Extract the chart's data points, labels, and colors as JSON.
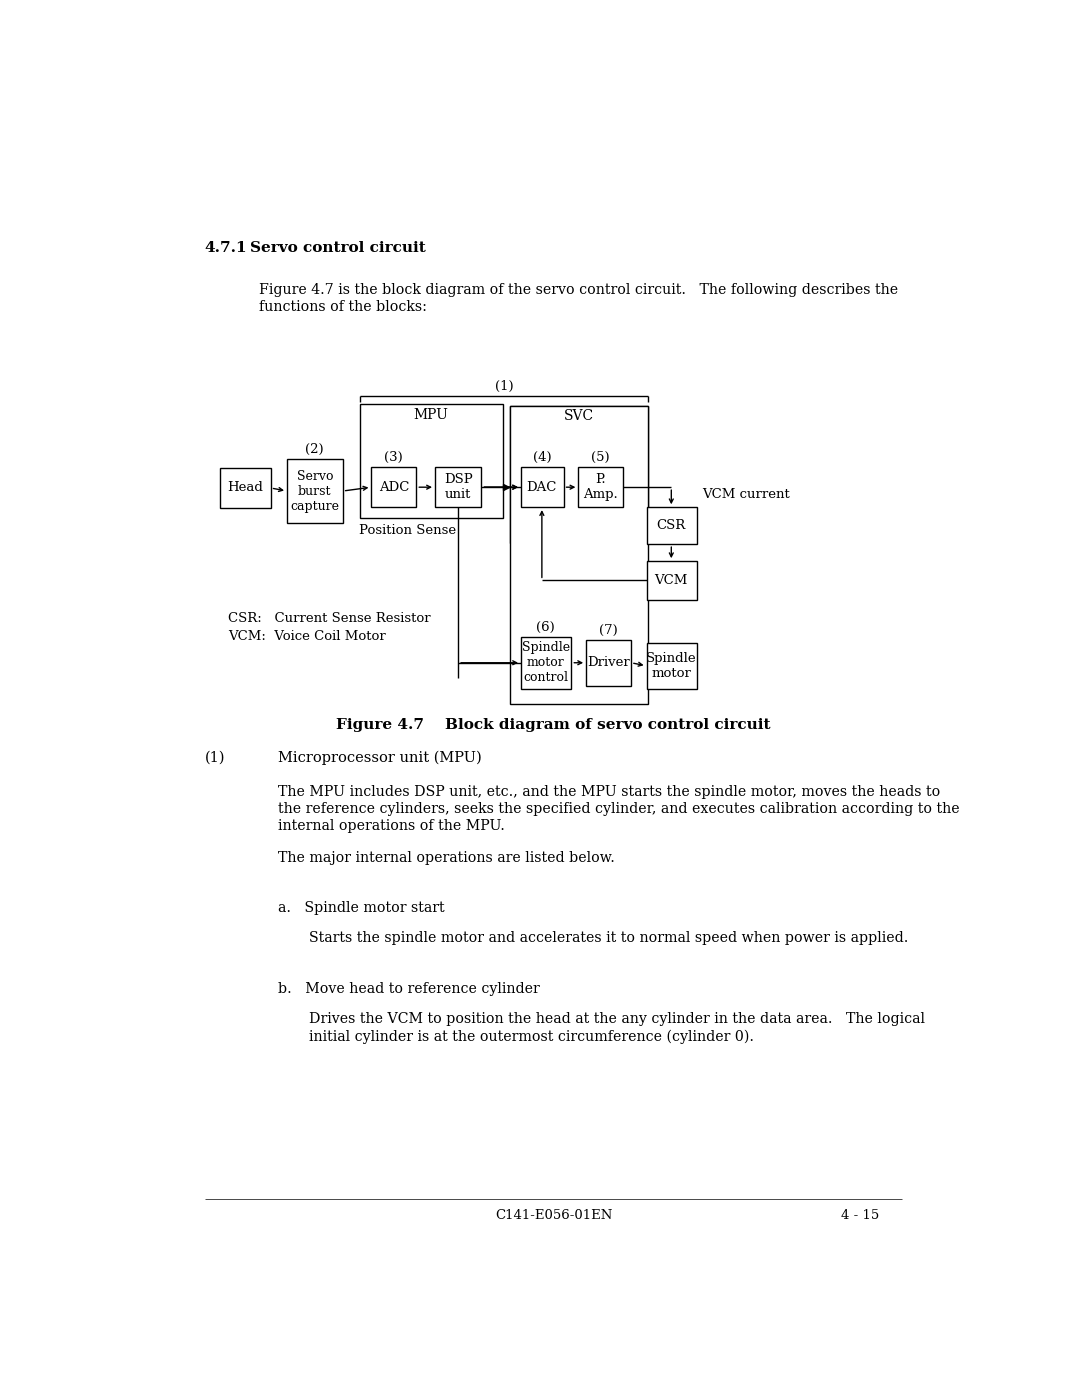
{
  "bg_color": "#ffffff",
  "page_width": 10.8,
  "page_height": 13.97,
  "section_title_num": "4.7.1",
  "section_title_text": "Servo control circuit",
  "intro_text_line1": "Figure 4.7 is the block diagram of the servo control circuit.   The following describes the",
  "intro_text_line2": "functions of the blocks:",
  "figure_caption": "Figure 4.7    Block diagram of servo control circuit",
  "footer_left": "C141-E056-01EN",
  "footer_right": "4 - 15",
  "legend_line1": "CSR:   Current Sense Resistor",
  "legend_line2": "VCM:  Voice Coil Motor",
  "position_sense_label": "Position Sense",
  "vcm_current_label": "VCM current",
  "body1_num": "(1)",
  "body1_head": "Microprocessor unit (MPU)",
  "body1_para1_l1": "The MPU includes DSP unit, etc., and the MPU starts the spindle motor, moves the heads to",
  "body1_para1_l2": "the reference cylinders, seeks the specified cylinder, and executes calibration according to the",
  "body1_para1_l3": "internal operations of the MPU.",
  "body1_para2": "The major internal operations are listed below.",
  "sub_a_head": "a.   Spindle motor start",
  "sub_a_body": "Starts the spindle motor and accelerates it to normal speed when power is applied.",
  "sub_b_head": "b.   Move head to reference cylinder",
  "sub_b_body_l1": "Drives the VCM to position the head at the any cylinder in the data area.   The logical",
  "sub_b_body_l2": "initial cylinder is at the outermost circumference (cylinder 0)."
}
